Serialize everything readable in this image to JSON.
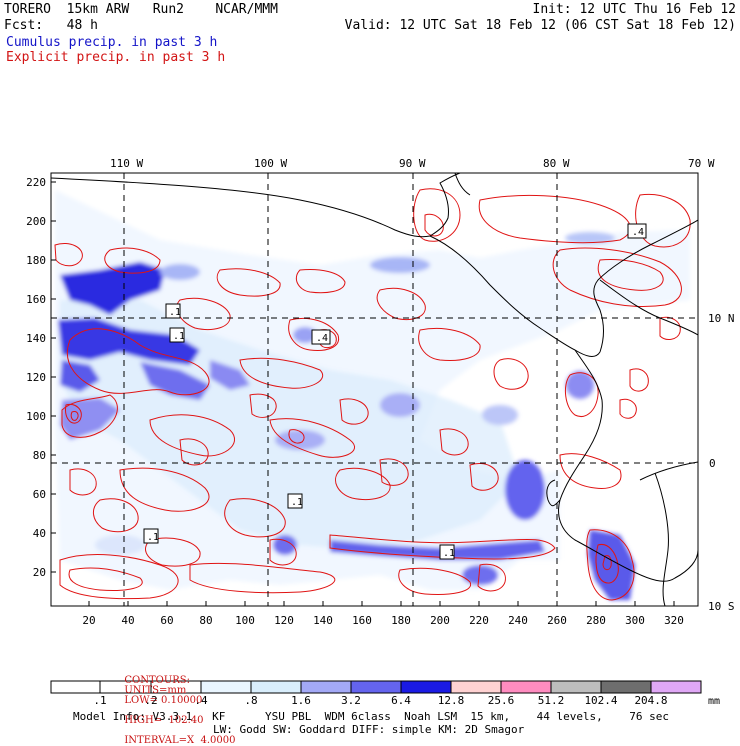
{
  "header": {
    "model": "TORERO  15km ARW   Run2    NCAR/MMM",
    "init": "Init: 12 UTC Thu 16 Feb 12",
    "fcst": "Fcst:   48 h",
    "valid": "Valid: 12 UTC Sat 18 Feb 12 (06 CST Sat 18 Feb 12)",
    "field1": "Cumulus precip. in past 3 h",
    "field2": "Explicit precip. in past 3 h"
  },
  "map": {
    "top_lon_labels": [
      "110 W",
      "100 W",
      "90 W",
      "80 W",
      "70 W"
    ],
    "right_lat_labels": [
      "10 N",
      "0",
      "10 S"
    ],
    "y_ticks": [
      "220",
      "200",
      "180",
      "160",
      "140",
      "120",
      "100",
      "80",
      "60",
      "40",
      "20"
    ],
    "x_ticks": [
      "20",
      "40",
      "60",
      "80",
      "100",
      "120",
      "140",
      "160",
      "180",
      "200",
      "220",
      "240",
      "260",
      "280",
      "300",
      "320"
    ],
    "contour_boxes": [
      ".4",
      ".1",
      ".4",
      ".1",
      ".1",
      ".1",
      ".1"
    ]
  },
  "contours": {
    "label": "CONTOURS:",
    "units": "UNITS=mm",
    "low": "LOW= 0.10000",
    "high": "HIGH=  102.40",
    "interval": "INTERVAL=X  4.0000"
  },
  "scale": {
    "labels": [
      ".1",
      ".2",
      ".4",
      ".8",
      "1.6",
      "3.2",
      "6.4",
      "12.8",
      "25.6",
      "51.2",
      "102.4",
      "204.8"
    ],
    "unit": "mm",
    "colors": [
      "#ffffff",
      "#ffffff",
      "#eaf6ff",
      "#d9eefc",
      "#c6d8fa",
      "#a3a9f6",
      "#6464ee",
      "#2c2ce6",
      "#0000e0",
      "#ffd2d2",
      "#ff8cc0",
      "#bdbdbd",
      "#6e6e6e",
      "#e0a8f6"
    ]
  },
  "footer": {
    "line1": "Model Info: V3.3.1   KF      YSU PBL  WDM 6class  Noah LSM  15 km,    44 levels,    76 sec",
    "line2": "LW: Godd SW: Goddard DIFF: simple KM: 2D Smagor"
  }
}
